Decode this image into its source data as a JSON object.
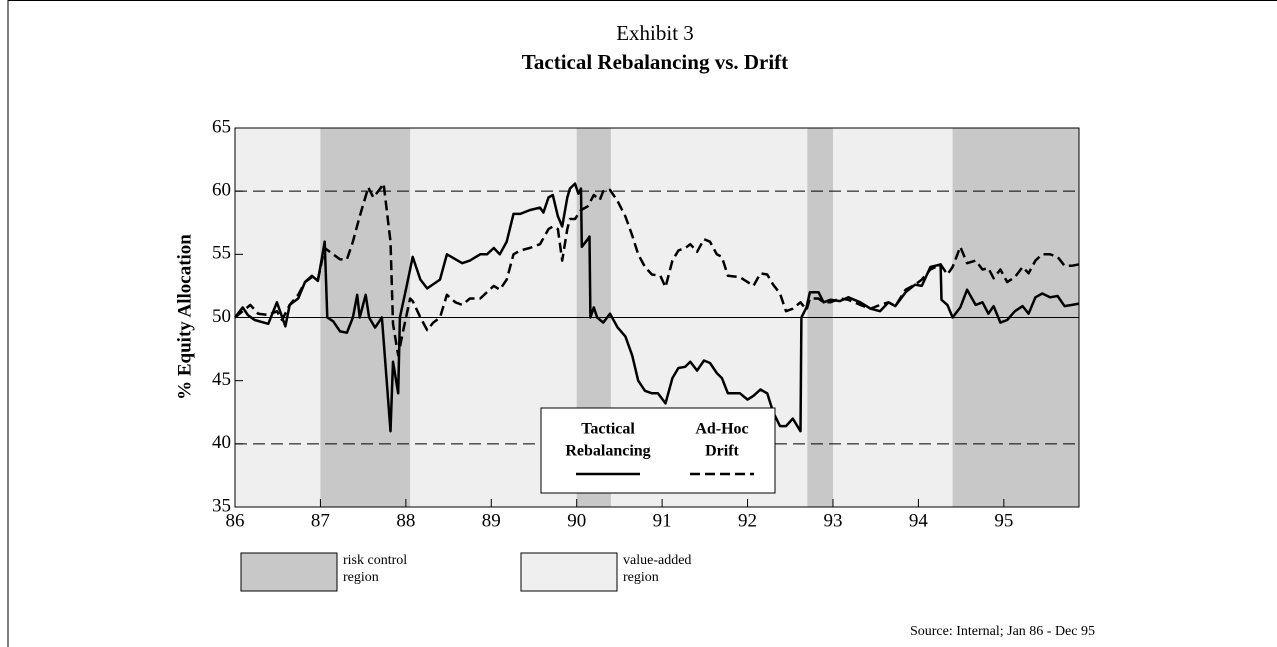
{
  "chart_data": {
    "type": "line",
    "title": "Exhibit 3",
    "subtitle": "Tactical Rebalancing vs. Drift",
    "y_label": "% Equity Allocation",
    "source": "Source: Internal; Jan 86 - Dec 95",
    "xlim": [
      86,
      95.88
    ],
    "ylim": [
      35,
      65
    ],
    "xticks": [
      86,
      87,
      88,
      89,
      90,
      91,
      92,
      93,
      94,
      95
    ],
    "yticks": [
      35,
      40,
      45,
      50,
      55,
      60,
      65
    ],
    "reference_lines": [
      {
        "value": 60,
        "style": "dashed"
      },
      {
        "value": 50,
        "style": "solid"
      },
      {
        "value": 40,
        "style": "dashed"
      }
    ],
    "regions": [
      {
        "name": [
          "risk control",
          "region"
        ],
        "color": "#c8c8c8",
        "spans": [
          [
            87,
            88.05
          ],
          [
            90,
            90.4
          ],
          [
            92.7,
            93
          ],
          [
            94.4,
            95.88
          ]
        ]
      },
      {
        "name": [
          "value-added",
          "region"
        ],
        "color": "#efefef"
      }
    ],
    "series": [
      {
        "name": [
          "Tactical",
          "Rebalancing"
        ],
        "color": "#000000",
        "dashed": false,
        "x": [
          86,
          86.09,
          86.15,
          86.23,
          86.39,
          86.49,
          86.59,
          86.64,
          86.74,
          86.82,
          86.9,
          86.97,
          87.05,
          87.08,
          87.15,
          87.23,
          87.31,
          87.38,
          87.43,
          87.46,
          87.53,
          87.57,
          87.64,
          87.72,
          87.82,
          87.85,
          87.91,
          87.93,
          88.01,
          88.08,
          88.17,
          88.25,
          88.4,
          88.48,
          88.66,
          88.75,
          88.87,
          88.95,
          89.03,
          89.1,
          89.18,
          89.26,
          89.34,
          89.45,
          89.57,
          89.61,
          89.67,
          89.72,
          89.78,
          89.83,
          89.89,
          89.92,
          89.98,
          90.02,
          90.05,
          90.06,
          90.13,
          90.15,
          90.16,
          90.2,
          90.24,
          90.31,
          90.39,
          90.48,
          90.57,
          90.65,
          90.72,
          90.8,
          90.88,
          90.95,
          91.04,
          91.12,
          91.19,
          91.27,
          91.33,
          91.41,
          91.49,
          91.56,
          91.64,
          91.7,
          91.77,
          91.91,
          92,
          92.07,
          92.15,
          92.23,
          92.3,
          92.38,
          92.45,
          92.53,
          92.62,
          92.63,
          92.69,
          92.73,
          92.83,
          92.89,
          92.97,
          93.08,
          93.18,
          93.32,
          93.44,
          93.55,
          93.65,
          93.73,
          93.85,
          93.96,
          94.04,
          94.14,
          94.26,
          94.27,
          94.34,
          94.4,
          94.49,
          94.57,
          94.67,
          94.75,
          94.82,
          94.88,
          94.96,
          95.04,
          95.13,
          95.22,
          95.29,
          95.37,
          95.45,
          95.54,
          95.63,
          95.71,
          95.8,
          95.88
        ],
        "values": [
          50,
          50.8,
          50.2,
          49.8,
          49.5,
          51.2,
          49.3,
          51,
          51.5,
          52.8,
          53.3,
          52.9,
          56,
          50,
          49.7,
          48.9,
          48.8,
          50,
          51.8,
          50,
          51.8,
          50,
          49.2,
          50,
          41,
          46.5,
          44,
          50,
          52.5,
          54.8,
          53,
          52.3,
          53,
          55,
          54.3,
          54.5,
          55,
          55,
          55.5,
          55,
          56,
          58.2,
          58.2,
          58.5,
          58.7,
          58.3,
          59.5,
          59.7,
          58,
          57.2,
          59.5,
          60.2,
          60.6,
          59.8,
          60.2,
          55.6,
          56.2,
          56.4,
          50,
          50.8,
          50,
          49.6,
          50.3,
          49.2,
          48.5,
          47,
          45,
          44.2,
          44,
          44,
          43.2,
          45.2,
          46,
          46.1,
          46.5,
          45.8,
          46.6,
          46.4,
          45.6,
          45.2,
          44,
          44,
          43.5,
          43.8,
          44.3,
          44,
          42.5,
          41.4,
          41.4,
          42,
          41,
          50,
          50.8,
          52,
          52,
          51.2,
          51.4,
          51.3,
          51.6,
          51.2,
          50.7,
          50.5,
          51.2,
          50.9,
          52,
          52.6,
          52.5,
          54,
          54.2,
          51.4,
          51,
          50,
          50.8,
          52.2,
          51,
          51.2,
          50.3,
          50.9,
          49.6,
          49.8,
          50.5,
          50.9,
          50.3,
          51.6,
          51.9,
          51.6,
          51.7,
          50.9,
          51,
          51.1
        ]
      },
      {
        "name": [
          "Ad-Hoc",
          "Drift"
        ],
        "color": "#000000",
        "dashed": true,
        "x": [
          86,
          86.09,
          86.18,
          86.27,
          86.39,
          86.49,
          86.55,
          86.64,
          86.74,
          86.82,
          86.9,
          86.97,
          87.05,
          87.15,
          87.23,
          87.31,
          87.38,
          87.46,
          87.56,
          87.62,
          87.7,
          87.74,
          87.82,
          87.85,
          87.91,
          87.97,
          88.05,
          88.08,
          88.17,
          88.25,
          88.32,
          88.4,
          88.48,
          88.58,
          88.66,
          88.75,
          88.87,
          88.95,
          89.03,
          89.1,
          89.18,
          89.26,
          89.34,
          89.45,
          89.57,
          89.67,
          89.72,
          89.78,
          89.83,
          89.89,
          89.92,
          89.98,
          90.05,
          90.13,
          90.2,
          90.27,
          90.31,
          90.39,
          90.48,
          90.57,
          90.65,
          90.72,
          90.8,
          90.88,
          90.98,
          91.04,
          91.12,
          91.19,
          91.27,
          91.33,
          91.41,
          91.49,
          91.56,
          91.64,
          91.7,
          91.77,
          91.91,
          92,
          92.07,
          92.15,
          92.23,
          92.3,
          92.38,
          92.45,
          92.53,
          92.62,
          92.69,
          92.73,
          92.83,
          92.89,
          92.97,
          93.08,
          93.18,
          93.32,
          93.44,
          93.55,
          93.65,
          93.73,
          93.85,
          93.96,
          94.04,
          94.14,
          94.26,
          94.34,
          94.4,
          94.49,
          94.57,
          94.67,
          94.75,
          94.82,
          94.88,
          94.96,
          95.04,
          95.13,
          95.22,
          95.29,
          95.37,
          95.45,
          95.54,
          95.63,
          95.71,
          95.8,
          95.88
        ],
        "values": [
          50,
          50.5,
          51,
          50.3,
          50.2,
          50.5,
          49.8,
          51,
          51.8,
          52.8,
          53.2,
          53,
          55.5,
          55,
          54.6,
          54.6,
          56,
          58,
          60.3,
          59.5,
          60.2,
          60.6,
          56,
          49.5,
          47,
          49,
          51.5,
          51.3,
          50,
          49,
          49.6,
          50,
          51.8,
          51.2,
          51,
          51.5,
          51.5,
          52,
          52.5,
          52.2,
          53,
          55,
          55.3,
          55.5,
          55.8,
          57,
          57.2,
          57,
          54.5,
          57,
          57.8,
          57.8,
          58.5,
          58.8,
          59.7,
          59.3,
          60,
          60.1,
          59.2,
          58,
          56.5,
          55,
          54,
          53.4,
          53.3,
          52.4,
          54.5,
          55.3,
          55.5,
          55.8,
          55.2,
          56.2,
          56,
          55,
          54.8,
          53.3,
          53.2,
          52.8,
          52.5,
          53.5,
          53.4,
          52.6,
          51.9,
          50.5,
          50.7,
          51.2,
          50.6,
          51.5,
          51.5,
          51.2,
          51.2,
          51.5,
          51.4,
          51,
          50.7,
          51,
          51.2,
          50.9,
          52.2,
          52.6,
          53,
          53.8,
          54.2,
          53.4,
          54,
          55.6,
          54.3,
          54.5,
          53.8,
          53.9,
          53.1,
          53.8,
          52.8,
          53.2,
          54,
          53.5,
          54.5,
          55,
          55,
          54.8,
          54.1,
          54.1,
          54.2
        ]
      }
    ]
  }
}
